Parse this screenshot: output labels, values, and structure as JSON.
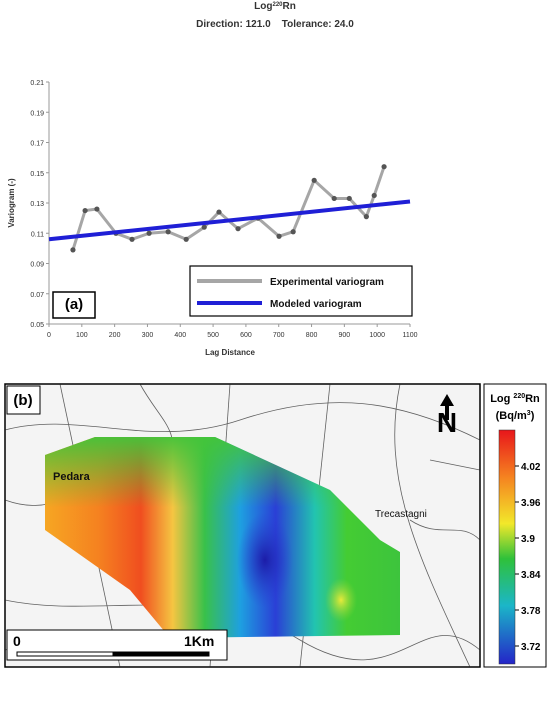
{
  "chart_data": {
    "type": "line",
    "title": {
      "prefix": "Log",
      "sup": "220",
      "suffix": "Rn"
    },
    "subtitle": "Direction: 121.0    Tolerance: 24.0",
    "panel_label": "(a)",
    "x_label": "Lag Distance",
    "y_label": "Variogram (-)",
    "xlim": [
      0,
      1100
    ],
    "xticks": [
      0,
      100,
      200,
      300,
      400,
      500,
      600,
      700,
      800,
      900,
      1000,
      1100
    ],
    "ylim": [
      0.05,
      0.21
    ],
    "yticks": [
      0.05,
      0.07,
      0.09,
      0.11,
      0.13,
      0.15,
      0.17,
      0.19,
      0.21
    ],
    "legend": "lower right",
    "series": [
      {
        "name": "Experimental variogram",
        "color": "#a6a6a6",
        "markers": true,
        "x": [
          73,
          110,
          146,
          204,
          253,
          305,
          363,
          418,
          473,
          518,
          576,
          637,
          701,
          744,
          808,
          869,
          915,
          967,
          991,
          1021
        ],
        "values": [
          0.099,
          0.125,
          0.126,
          0.11,
          0.106,
          0.11,
          0.111,
          0.106,
          0.114,
          0.124,
          0.113,
          0.12,
          0.108,
          0.111,
          0.145,
          0.133,
          0.133,
          0.121,
          0.135,
          0.154
        ]
      },
      {
        "name": "Modeled variogram",
        "color": "#1f1fd6",
        "markers": false,
        "x": [
          0,
          1100
        ],
        "values": [
          0.106,
          0.131
        ]
      }
    ]
  },
  "map": {
    "panel_label": "(b)",
    "places": [
      "Pedara",
      "Trecastagni"
    ],
    "north": "N",
    "scale": [
      "0",
      "1Km"
    ],
    "colorbar": {
      "title_prefix": "Log ",
      "title_sup": "220",
      "title_suffix": "Rn",
      "unit_prefix": "(Bq/m",
      "unit_sup": "3",
      "unit_suffix": ")",
      "clim": [
        3.69,
        4.08
      ],
      "ticks": [
        4.02,
        3.96,
        3.9,
        3.84,
        3.78,
        3.72
      ]
    }
  }
}
